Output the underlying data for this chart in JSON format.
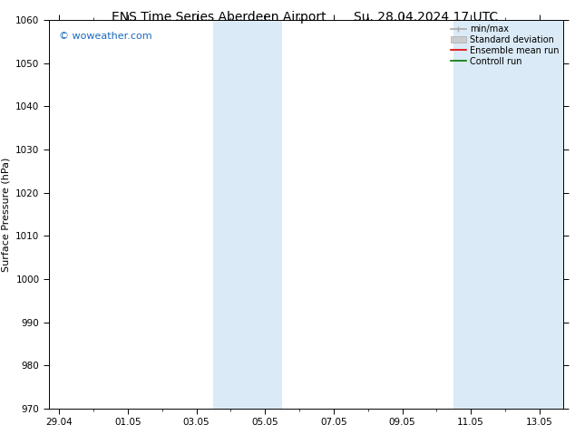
{
  "title_left": "ENS Time Series Aberdeen Airport",
  "title_right": "Su. 28.04.2024 17 UTC",
  "ylabel": "Surface Pressure (hPa)",
  "ylim": [
    970,
    1060
  ],
  "yticks": [
    970,
    980,
    990,
    1000,
    1010,
    1020,
    1030,
    1040,
    1050,
    1060
  ],
  "xtick_positions": [
    0,
    2,
    4,
    6,
    8,
    10,
    12,
    14
  ],
  "xtick_labels": [
    "29.04",
    "01.05",
    "03.05",
    "05.05",
    "07.05",
    "09.05",
    "11.05",
    "13.05"
  ],
  "xlim": [
    -0.3,
    14.7
  ],
  "band1_x0": 4.5,
  "band1_x1": 6.5,
  "band2_x0": 11.5,
  "band2_x1": 14.7,
  "shaded_color": "#daeaf6",
  "watermark": "© woweather.com",
  "watermark_color": "#1a6abf",
  "background_color": "#ffffff",
  "legend_entries": [
    "min/max",
    "Standard deviation",
    "Ensemble mean run",
    "Controll run"
  ],
  "legend_line_colors": [
    "#aaaaaa",
    "#cccccc",
    "#dd0000",
    "#007700"
  ],
  "title_fontsize": 10,
  "ylabel_fontsize": 8,
  "tick_fontsize": 7.5,
  "legend_fontsize": 7,
  "watermark_fontsize": 8
}
